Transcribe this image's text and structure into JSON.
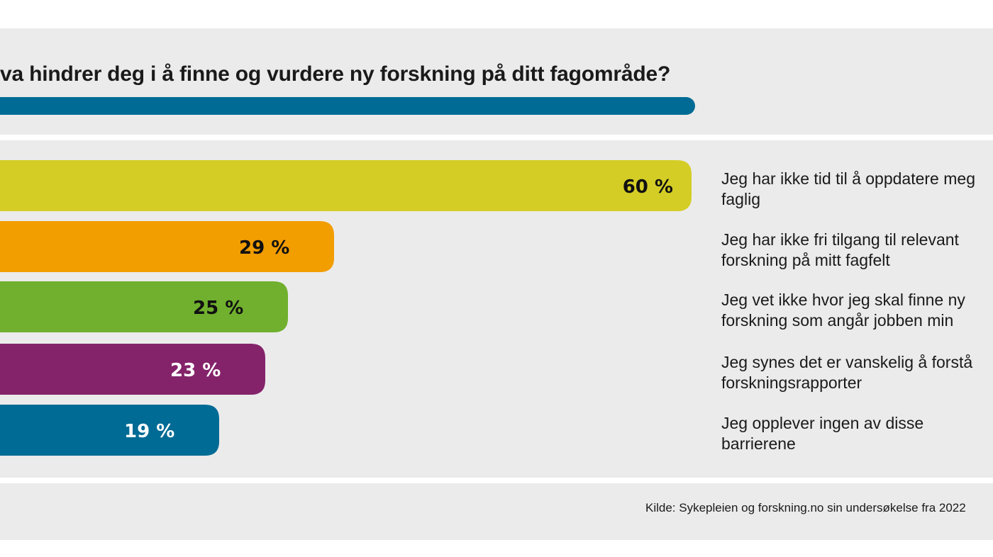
{
  "chart_data": {
    "type": "bar",
    "orientation": "horizontal",
    "title": "va hindrer deg i å finne og vurdere ny forskning på ditt fagområde?",
    "categories": [
      "Jeg har ikke tid til å oppdatere meg faglig",
      "Jeg har ikke fri tilgang til relevant forskning på mitt fagfelt",
      "Jeg vet ikke hvor jeg skal finne ny forskning som angår jobben min",
      "Jeg synes det er vanskelig å forstå forskningsrapporter",
      "Jeg opplever ingen av disse barrierene"
    ],
    "values": [
      60,
      29,
      25,
      23,
      19
    ],
    "value_labels": [
      "60 %",
      "29 %",
      "25 %",
      "23 %",
      "19 %"
    ],
    "unit": "%",
    "xlim": [
      0,
      60
    ],
    "grid": false,
    "bar_colors": [
      "#d4cd26",
      "#f29d00",
      "#70b02e",
      "#84236a",
      "#006b94"
    ],
    "value_label_colors": [
      "#111111",
      "#111111",
      "#111111",
      "#ffffff",
      "#ffffff"
    ],
    "source": "Kilde: Sykepleien og forskning.no sin undersøkelse fra 2022"
  },
  "colors": {
    "background": "#ebebeb",
    "accent": "#006b94"
  }
}
